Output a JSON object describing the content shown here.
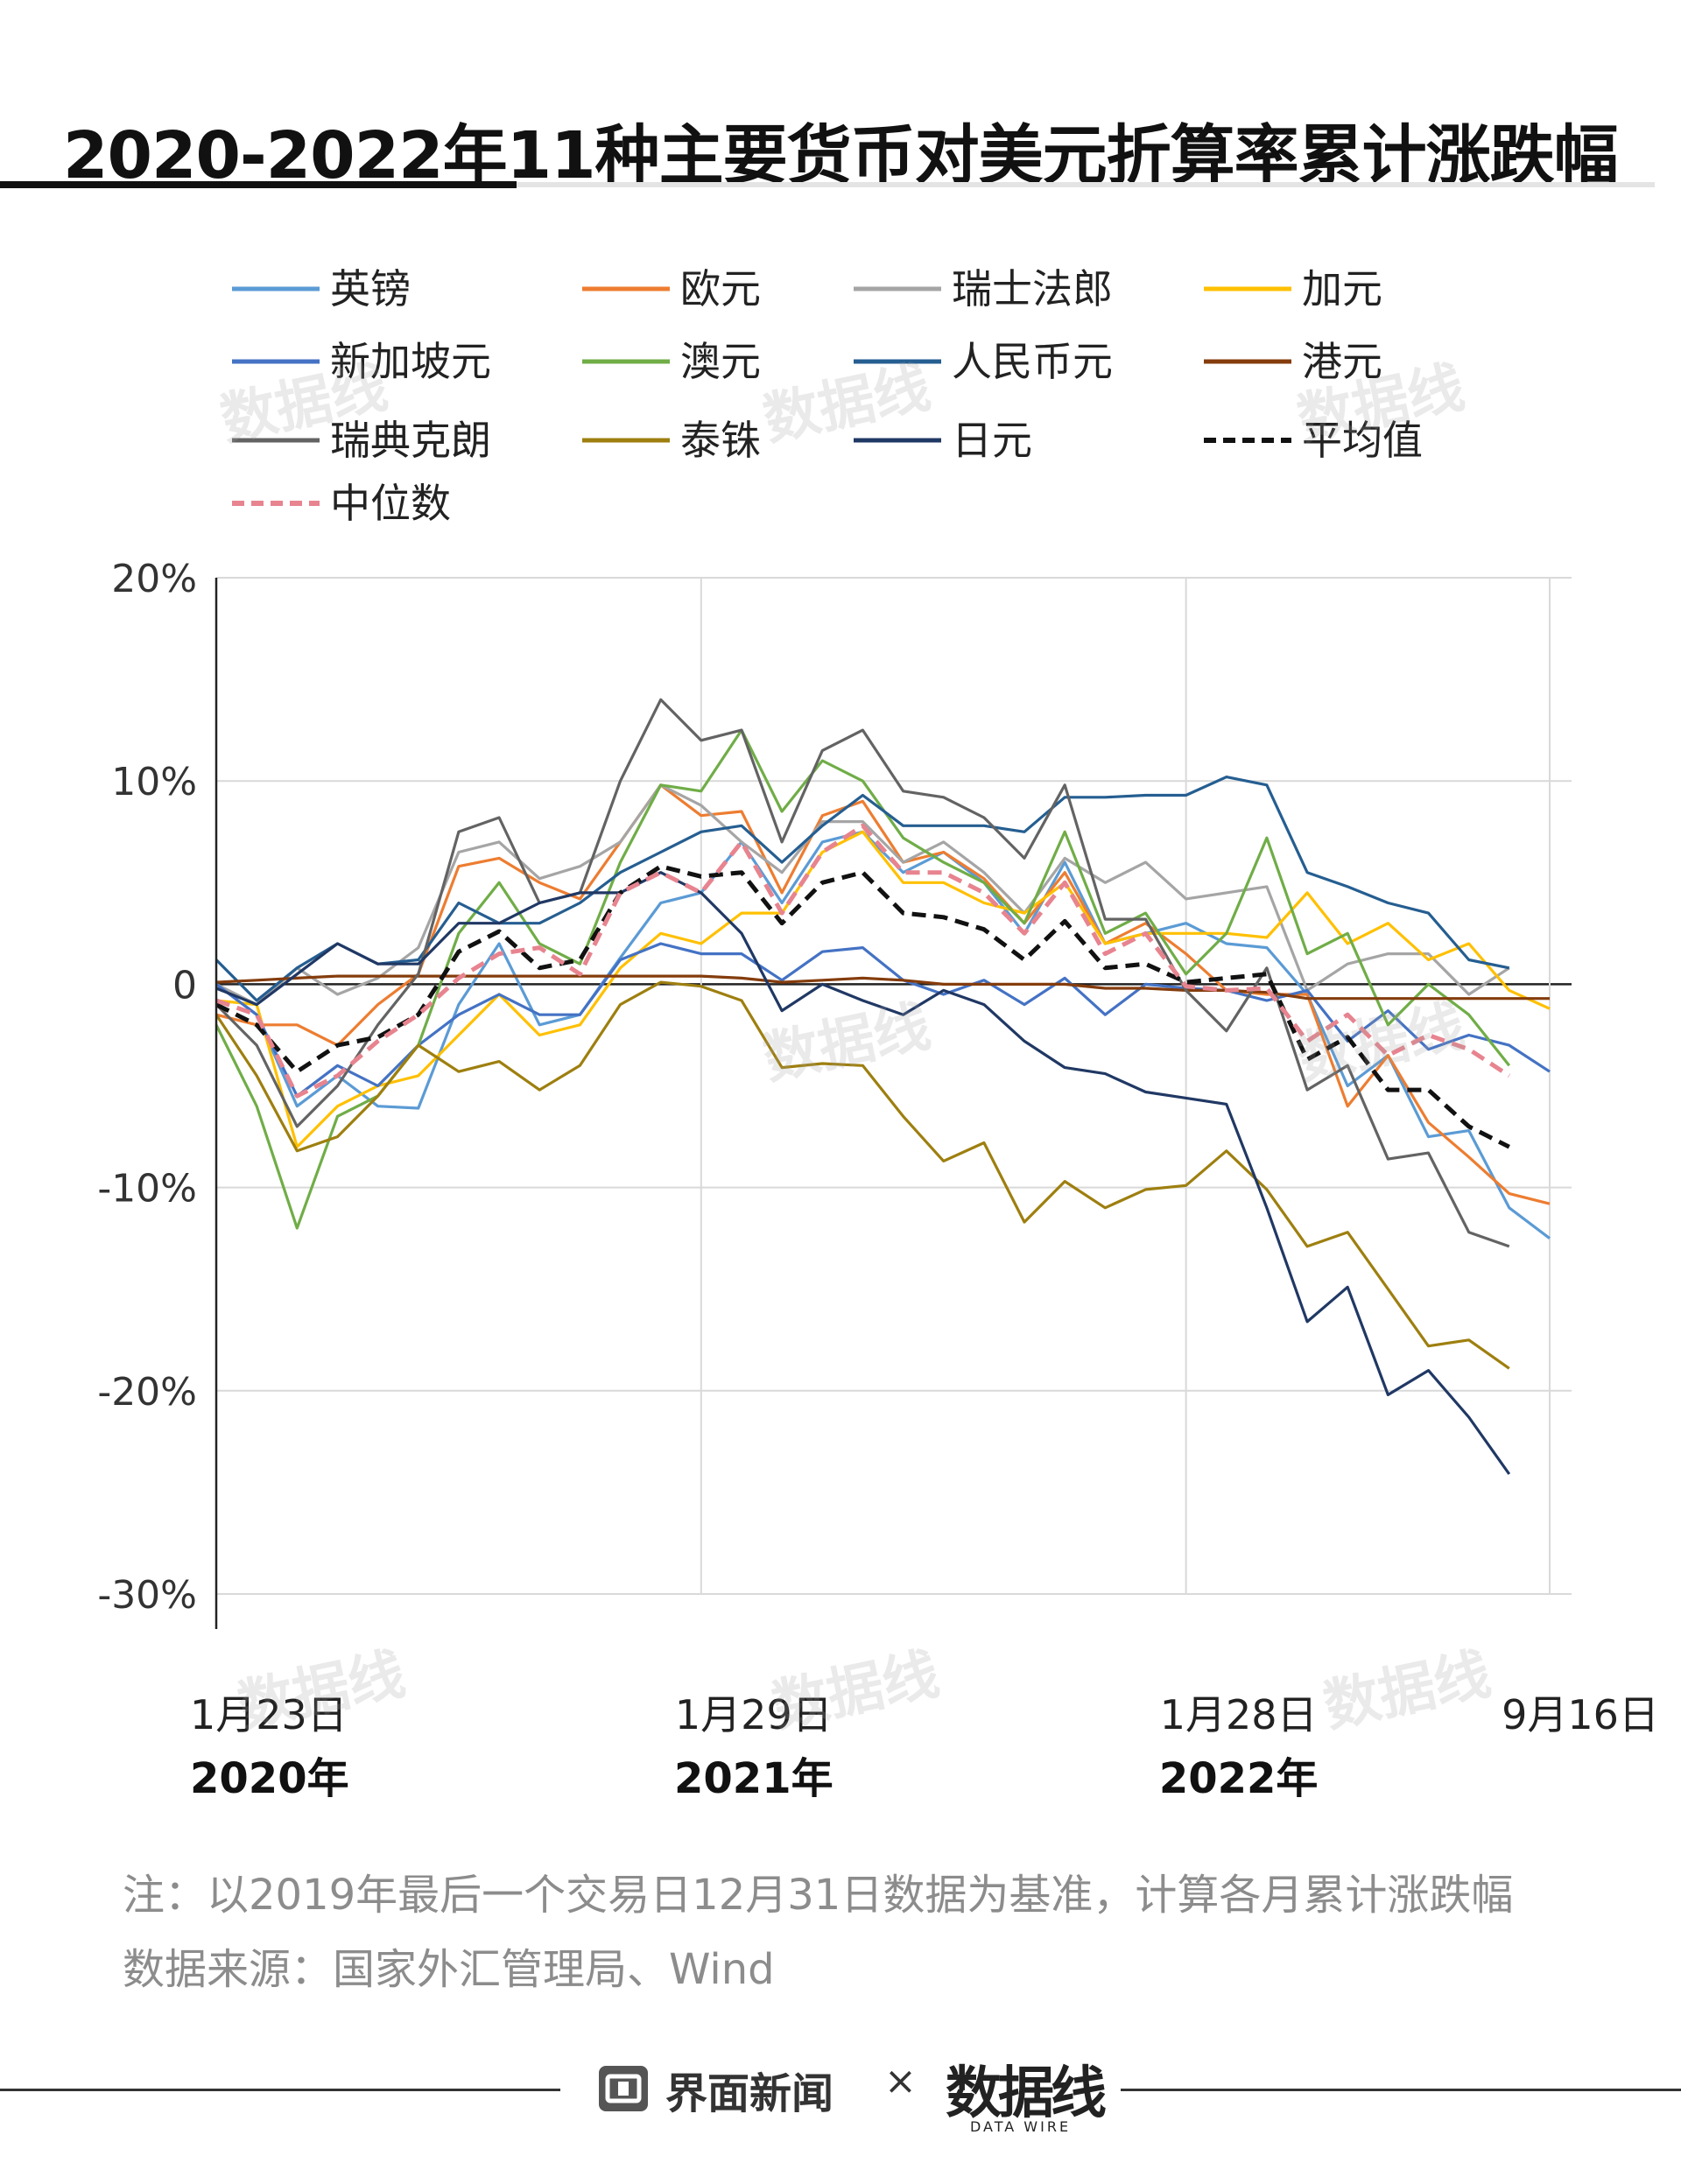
{
  "title": "2020-2022年11种主要货币对美元折算率累计涨跌幅",
  "note": "注：以2019年最后一个交易日12月31日数据为基准，计算各月累计涨跌幅",
  "source": "数据来源：国家外汇管理局、Wind",
  "footer": {
    "brand": "界面新闻",
    "separator": "×",
    "brand2": "数据线",
    "brand2_sub": "DATA WIRE"
  },
  "watermark": "数据线",
  "chart_data": {
    "type": "line",
    "x_labels": [
      {
        "day": "1月23日",
        "year": "2020年",
        "index": 0
      },
      {
        "day": "1月29日",
        "year": "2021年",
        "index": 12
      },
      {
        "day": "1月28日",
        "year": "2022年",
        "index": 24
      },
      {
        "day": "9月16日",
        "year": "",
        "index": 33
      }
    ],
    "ylim": [
      -30,
      20
    ],
    "yticks": [
      20,
      10,
      0,
      -10,
      -20,
      -30
    ],
    "ytick_labels": [
      "20%",
      "10%",
      "0",
      "-10%",
      "-20%",
      "-30%"
    ],
    "grid": true,
    "legend_position": "top",
    "series": [
      {
        "name": "英镑",
        "color": "#5b9bd5",
        "dash": false,
        "values": [
          0,
          -1.5,
          -6,
          -4.5,
          -6,
          -6.1,
          -1,
          2,
          -2,
          -1.5,
          1.3,
          4,
          4.5,
          7,
          4,
          7,
          7.5,
          5.5,
          6.5,
          5,
          2.5,
          6,
          2,
          2.5,
          3,
          2,
          1.8,
          -0.5,
          -5,
          -3.5,
          -7.5,
          -7.2,
          -11,
          -12.5
        ]
      },
      {
        "name": "欧元",
        "color": "#ed7d31",
        "dash": false,
        "values": [
          -1.5,
          -2,
          -2,
          -3,
          -1,
          0.5,
          5.8,
          6.2,
          5,
          4.2,
          7,
          9.8,
          8.3,
          8.5,
          4.5,
          8.3,
          9,
          6,
          6.5,
          5.2,
          3,
          5.5,
          2,
          3,
          1.5,
          -0.3,
          -0.5,
          -0.5,
          -6,
          -3.5,
          -6.8,
          -8.5,
          -10.3,
          -10.8
        ]
      },
      {
        "name": "瑞士法郎",
        "color": "#a5a5a5",
        "dash": false,
        "values": [
          0,
          -1,
          0.8,
          -0.5,
          0.3,
          1.8,
          6.5,
          7,
          5.2,
          5.8,
          7,
          9.8,
          8.8,
          7,
          5.5,
          8,
          8,
          6,
          7,
          5.5,
          3.5,
          6.2,
          5,
          6,
          4.2,
          4.5,
          4.8,
          -0.3,
          1,
          1.5,
          1.5,
          -0.5,
          0.8
        ]
      },
      {
        "name": "加元",
        "color": "#ffc000",
        "dash": false,
        "values": [
          -0.8,
          -1,
          -8,
          -6,
          -5,
          -4.5,
          -2.5,
          -0.5,
          -2.5,
          -2,
          0.8,
          2.5,
          2,
          3.5,
          3.5,
          6.5,
          7.5,
          5,
          5,
          4,
          3.5,
          5,
          2,
          2.5,
          2.5,
          2.5,
          2.3,
          4.5,
          2,
          3,
          1.2,
          2,
          -0.3,
          -1.2
        ]
      },
      {
        "name": "新加坡元",
        "color": "#4472c4",
        "dash": false,
        "values": [
          0,
          -1.5,
          -5.5,
          -4,
          -5,
          -3,
          -1.5,
          -0.5,
          -1.5,
          -1.5,
          1.2,
          2,
          1.5,
          1.5,
          0.2,
          1.6,
          1.8,
          0.2,
          -0.5,
          0.2,
          -1,
          0.3,
          -1.5,
          0,
          -0.2,
          -0.3,
          -0.8,
          -0.3,
          -2.8,
          -1.3,
          -3.2,
          -2.5,
          -3,
          -4.3
        ]
      },
      {
        "name": "澳元",
        "color": "#70ad47",
        "dash": false,
        "values": [
          -2,
          -6,
          -12,
          -6.5,
          -5.5,
          -3,
          2.5,
          5,
          2,
          1,
          6,
          9.8,
          9.5,
          12.5,
          8.5,
          11,
          10,
          7.2,
          6,
          5,
          3,
          7.5,
          2.5,
          3.5,
          0.5,
          2.5,
          7.2,
          1.5,
          2.5,
          -2,
          0,
          -1.5,
          -4
        ]
      },
      {
        "name": "人民币元",
        "color": "#255e91",
        "dash": false,
        "values": [
          1.2,
          -0.8,
          0.8,
          2,
          1,
          1.2,
          4,
          3,
          3,
          4,
          5.5,
          6.5,
          7.5,
          7.8,
          6,
          7.8,
          9.3,
          7.8,
          7.8,
          7.8,
          7.5,
          9.2,
          9.2,
          9.3,
          9.3,
          10.2,
          9.8,
          5.5,
          4.8,
          4,
          3.5,
          1.2,
          0.8
        ]
      },
      {
        "name": "港元",
        "color": "#843c0c",
        "dash": false,
        "values": [
          0.1,
          0.2,
          0.3,
          0.4,
          0.4,
          0.4,
          0.4,
          0.4,
          0.4,
          0.4,
          0.4,
          0.4,
          0.4,
          0.3,
          0.1,
          0.2,
          0.3,
          0.2,
          0,
          0,
          0,
          0,
          -0.2,
          -0.2,
          -0.3,
          -0.3,
          -0.4,
          -0.7,
          -0.7,
          -0.7,
          -0.7,
          -0.7,
          -0.7,
          -0.7
        ]
      },
      {
        "name": "瑞典克朗",
        "color": "#636363",
        "dash": false,
        "values": [
          -1,
          -3,
          -7,
          -5,
          -2,
          0.5,
          7.5,
          8.2,
          4,
          4.5,
          10,
          14,
          12,
          12.5,
          7,
          11.5,
          12.5,
          9.5,
          9.2,
          8.2,
          6.2,
          9.8,
          3.2,
          3.2,
          -0.3,
          -2.3,
          0.8,
          -5.2,
          -4,
          -8.6,
          -8.3,
          -12.2,
          -12.9
        ]
      },
      {
        "name": "泰铢",
        "color": "#9e7f0f",
        "dash": false,
        "values": [
          -1.5,
          -4.5,
          -8.2,
          -7.5,
          -5.5,
          -3,
          -4.3,
          -3.8,
          -5.2,
          -4,
          -1,
          0.1,
          -0.1,
          -0.8,
          -4.1,
          -3.9,
          -4,
          -6.5,
          -8.7,
          -7.8,
          -11.7,
          -9.7,
          -11,
          -10.1,
          -9.9,
          -8.2,
          -10.1,
          -12.9,
          -12.2,
          -15,
          -17.8,
          -17.5,
          -18.9
        ]
      },
      {
        "name": "日元",
        "color": "#203864",
        "dash": false,
        "values": [
          -0.2,
          -1,
          0.5,
          2,
          1,
          1,
          3,
          3,
          4,
          4.5,
          4.5,
          5.5,
          4.5,
          2.5,
          -1.3,
          0,
          -0.8,
          -1.5,
          -0.3,
          -1,
          -2.8,
          -4.1,
          -4.4,
          -5.3,
          -5.6,
          -5.9,
          -11,
          -16.6,
          -14.9,
          -20.2,
          -19,
          -21.3,
          -24.1
        ]
      },
      {
        "name": "平均值",
        "color": "#111111",
        "dash": true,
        "values": [
          -1,
          -2,
          -4.3,
          -3,
          -2.6,
          -1.5,
          1.6,
          2.6,
          0.8,
          1.2,
          4.5,
          5.8,
          5.3,
          5.5,
          3,
          5,
          5.5,
          3.5,
          3.3,
          2.7,
          1.2,
          3.1,
          0.8,
          1,
          0.1,
          0.3,
          0.5,
          -3.7,
          -2.6,
          -5.2,
          -5.2,
          -7,
          -8
        ]
      },
      {
        "name": "中位数",
        "color": "#e7848f",
        "dash": true,
        "values": [
          -0.8,
          -1.5,
          -5.5,
          -4.5,
          -2.8,
          -1.5,
          0.3,
          1.5,
          1.8,
          0.5,
          4.5,
          5.5,
          4.5,
          7,
          3.5,
          6.5,
          7.8,
          5.5,
          5.5,
          4.5,
          2.5,
          5,
          1.5,
          2.5,
          -0.1,
          -0.3,
          -0.2,
          -2.8,
          -1.5,
          -3.5,
          -2.5,
          -3.2,
          -4.5
        ]
      }
    ]
  }
}
